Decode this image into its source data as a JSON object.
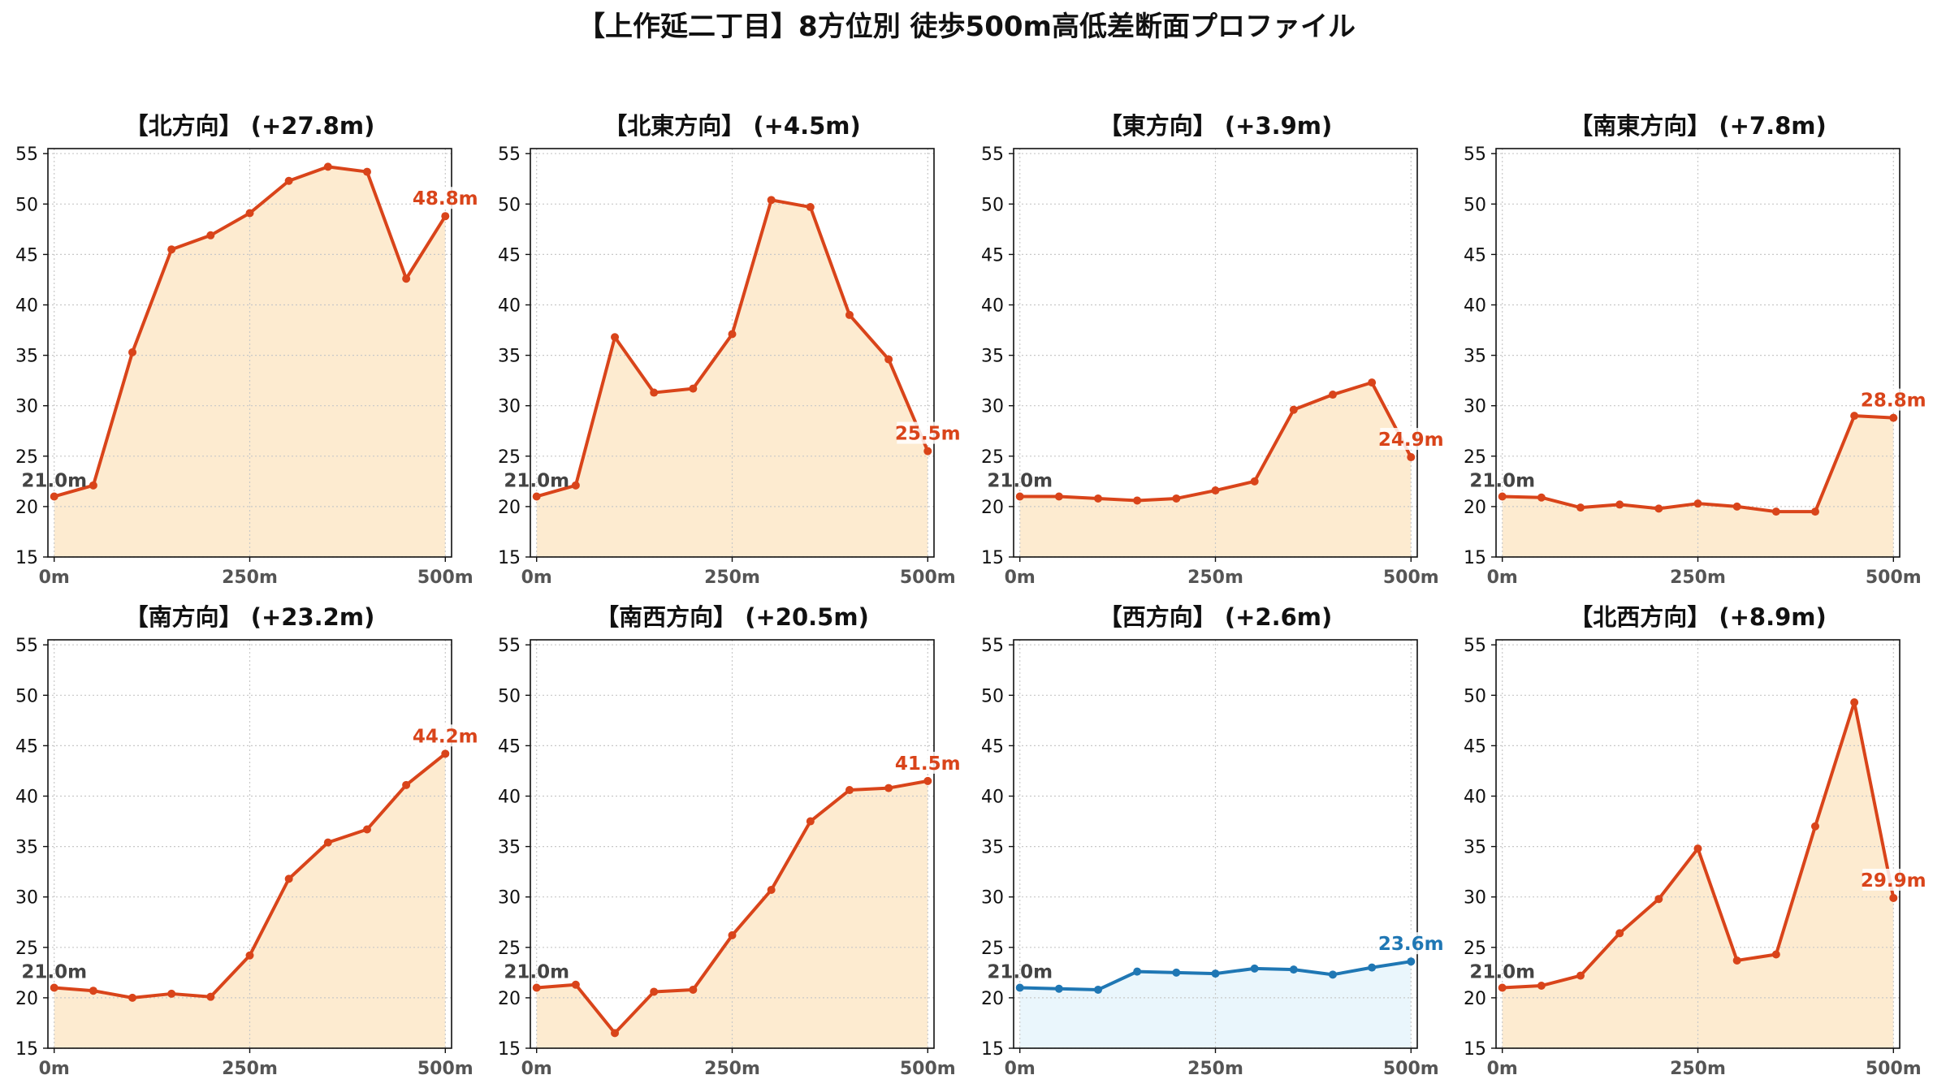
{
  "title": "【上作延二丁目】8方位別 徒歩500m高低差断面プロファイル",
  "colors": {
    "up_line": "#d9441a",
    "up_fill": "#fdebd0",
    "down_line": "#1f77b4",
    "down_fill": "#eaf6fc",
    "grid": "#c8c8c8",
    "start_label": "#444444"
  },
  "chart_data": [
    {
      "type": "area",
      "title": "【北方向】 (+27.8m)",
      "x": [
        0,
        50,
        100,
        150,
        200,
        250,
        300,
        350,
        400,
        450,
        500
      ],
      "y": [
        21.0,
        22.1,
        35.3,
        45.5,
        46.9,
        49.1,
        52.3,
        53.7,
        53.2,
        42.6,
        48.8
      ],
      "start_label": "21.0m",
      "end_label": "48.8m",
      "theme": "up",
      "xticks": [
        "0m",
        "250m",
        "500m"
      ],
      "yticks": [
        15,
        20,
        25,
        30,
        35,
        40,
        45,
        50,
        55
      ],
      "ylim": [
        15,
        55.5
      ],
      "xlim": [
        -8,
        508
      ],
      "grid": true
    },
    {
      "type": "area",
      "title": "【北東方向】 (+4.5m)",
      "x": [
        0,
        50,
        100,
        150,
        200,
        250,
        300,
        350,
        400,
        450,
        500
      ],
      "y": [
        21.0,
        22.1,
        36.8,
        31.3,
        31.7,
        37.1,
        50.4,
        49.7,
        39.0,
        34.6,
        25.5
      ],
      "start_label": "21.0m",
      "end_label": "25.5m",
      "theme": "up",
      "xticks": [
        "0m",
        "250m",
        "500m"
      ],
      "yticks": [
        15,
        20,
        25,
        30,
        35,
        40,
        45,
        50,
        55
      ],
      "ylim": [
        15,
        55.5
      ],
      "xlim": [
        -8,
        508
      ],
      "grid": true
    },
    {
      "type": "area",
      "title": "【東方向】 (+3.9m)",
      "x": [
        0,
        50,
        100,
        150,
        200,
        250,
        300,
        350,
        400,
        450,
        500
      ],
      "y": [
        21.0,
        21.0,
        20.8,
        20.6,
        20.8,
        21.6,
        22.5,
        29.6,
        31.1,
        32.3,
        24.9
      ],
      "start_label": "21.0m",
      "end_label": "24.9m",
      "theme": "up",
      "xticks": [
        "0m",
        "250m",
        "500m"
      ],
      "yticks": [
        15,
        20,
        25,
        30,
        35,
        40,
        45,
        50,
        55
      ],
      "ylim": [
        15,
        55.5
      ],
      "xlim": [
        -8,
        508
      ],
      "grid": true
    },
    {
      "type": "area",
      "title": "【南東方向】 (+7.8m)",
      "x": [
        0,
        50,
        100,
        150,
        200,
        250,
        300,
        350,
        400,
        450,
        500
      ],
      "y": [
        21.0,
        20.9,
        19.9,
        20.2,
        19.8,
        20.3,
        20.0,
        19.5,
        19.5,
        29.0,
        28.8
      ],
      "start_label": "21.0m",
      "end_label": "28.8m",
      "theme": "up",
      "xticks": [
        "0m",
        "250m",
        "500m"
      ],
      "yticks": [
        15,
        20,
        25,
        30,
        35,
        40,
        45,
        50,
        55
      ],
      "ylim": [
        15,
        55.5
      ],
      "xlim": [
        -8,
        508
      ],
      "grid": true
    },
    {
      "type": "area",
      "title": "【南方向】 (+23.2m)",
      "x": [
        0,
        50,
        100,
        150,
        200,
        250,
        300,
        350,
        400,
        450,
        500
      ],
      "y": [
        21.0,
        20.7,
        20.0,
        20.4,
        20.1,
        24.2,
        31.8,
        35.4,
        36.7,
        41.1,
        44.2
      ],
      "start_label": "21.0m",
      "end_label": "44.2m",
      "theme": "up",
      "xticks": [
        "0m",
        "250m",
        "500m"
      ],
      "yticks": [
        15,
        20,
        25,
        30,
        35,
        40,
        45,
        50,
        55
      ],
      "ylim": [
        15,
        55.5
      ],
      "xlim": [
        -8,
        508
      ],
      "grid": true
    },
    {
      "type": "area",
      "title": "【南西方向】 (+20.5m)",
      "x": [
        0,
        50,
        100,
        150,
        200,
        250,
        300,
        350,
        400,
        450,
        500
      ],
      "y": [
        21.0,
        21.3,
        16.5,
        20.6,
        20.8,
        26.2,
        30.7,
        37.5,
        40.6,
        40.8,
        41.5
      ],
      "start_label": "21.0m",
      "end_label": "41.5m",
      "theme": "up",
      "xticks": [
        "0m",
        "250m",
        "500m"
      ],
      "yticks": [
        15,
        20,
        25,
        30,
        35,
        40,
        45,
        50,
        55
      ],
      "ylim": [
        15,
        55.5
      ],
      "xlim": [
        -8,
        508
      ],
      "grid": true
    },
    {
      "type": "area",
      "title": "【西方向】 (+2.6m)",
      "x": [
        0,
        50,
        100,
        150,
        200,
        250,
        300,
        350,
        400,
        450,
        500
      ],
      "y": [
        21.0,
        20.9,
        20.8,
        22.6,
        22.5,
        22.4,
        22.9,
        22.8,
        22.3,
        23.0,
        23.6
      ],
      "start_label": "21.0m",
      "end_label": "23.6m",
      "theme": "down",
      "xticks": [
        "0m",
        "250m",
        "500m"
      ],
      "yticks": [
        15,
        20,
        25,
        30,
        35,
        40,
        45,
        50,
        55
      ],
      "ylim": [
        15,
        55.5
      ],
      "xlim": [
        -8,
        508
      ],
      "grid": true
    },
    {
      "type": "area",
      "title": "【北西方向】 (+8.9m)",
      "x": [
        0,
        50,
        100,
        150,
        200,
        250,
        300,
        350,
        400,
        450,
        500
      ],
      "y": [
        21.0,
        21.2,
        22.2,
        26.4,
        29.8,
        34.8,
        23.7,
        24.3,
        37.0,
        49.3,
        29.9
      ],
      "start_label": "21.0m",
      "end_label": "29.9m",
      "theme": "up",
      "xticks": [
        "0m",
        "250m",
        "500m"
      ],
      "yticks": [
        15,
        20,
        25,
        30,
        35,
        40,
        45,
        50,
        55
      ],
      "ylim": [
        15,
        55.5
      ],
      "xlim": [
        -8,
        508
      ],
      "grid": true
    }
  ]
}
